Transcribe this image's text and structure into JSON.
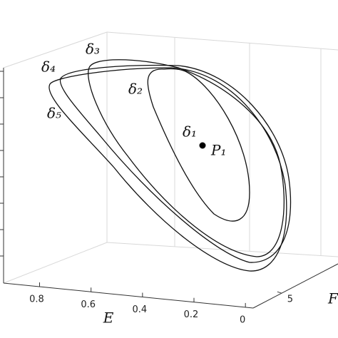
{
  "chart_data": {
    "type": "line3d",
    "xlabel": "E",
    "ylabel": "F",
    "xlim": [
      -0.03,
      0.94
    ],
    "xticks": [
      0.8,
      0.6,
      0.4,
      0.2,
      0
    ],
    "ylim": [
      0,
      14.9
    ],
    "yticks": [
      5
    ],
    "annotations": [
      "δ₃",
      "δ₄",
      "δ₂",
      "δ₅",
      "δ₁",
      "P₁"
    ]
  }
}
